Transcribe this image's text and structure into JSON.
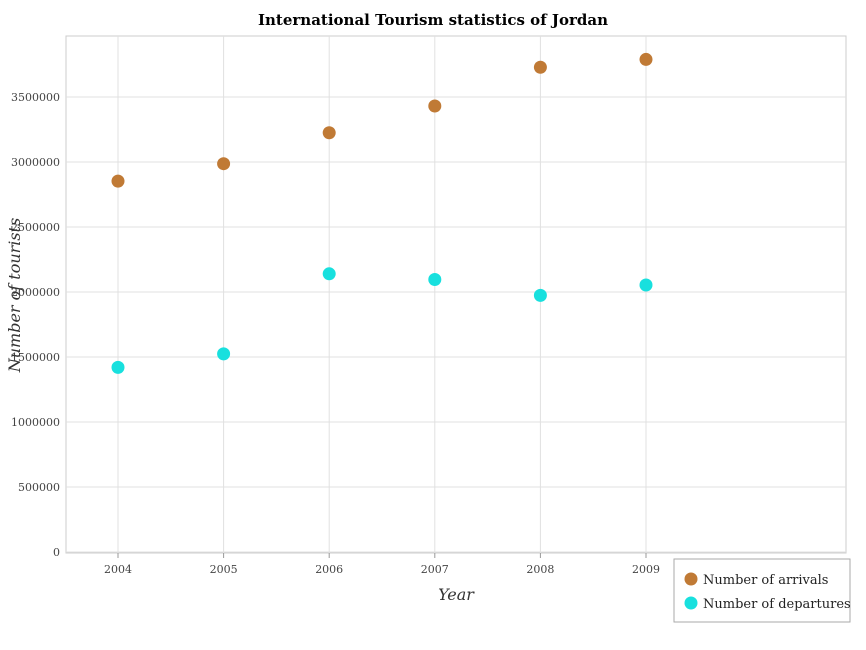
{
  "chart_data": {
    "type": "scatter",
    "title": "International Tourism statistics of Jordan",
    "xlabel": "Year",
    "ylabel": "Number of tourists",
    "categories": [
      "2004",
      "2005",
      "2006",
      "2007",
      "2008",
      "2009"
    ],
    "ylim": [
      0,
      4000000
    ],
    "yticks": [
      0,
      500000,
      1000000,
      1500000,
      2000000,
      2500000,
      3000000,
      3500000
    ],
    "ytick_labels": [
      "0",
      "500000",
      "1000000",
      "1500000",
      "2000000",
      "2500000",
      "3000000",
      "3500000"
    ],
    "grid": true,
    "legend_position": "bottom-right",
    "series": [
      {
        "name": "Number of arrivals",
        "color": "#c07a35",
        "values": [
          2853000,
          2987000,
          3225000,
          3431000,
          3729000,
          3789000
        ]
      },
      {
        "name": "Number of departures",
        "color": "#18e0de",
        "values": [
          1420000,
          1524000,
          2140000,
          2096000,
          1974000,
          2054000
        ]
      }
    ]
  }
}
